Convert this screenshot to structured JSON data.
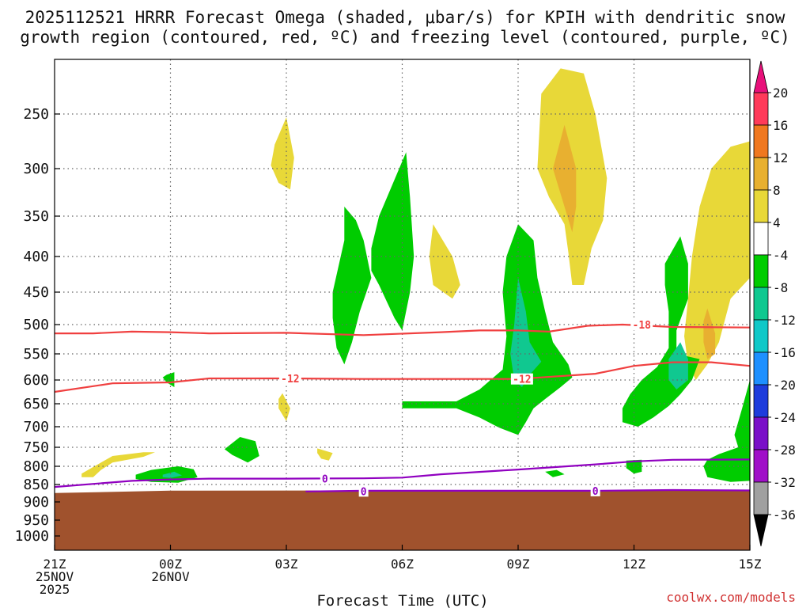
{
  "title_line1": "2025112521 HRRR Forecast Omega (shaded, μbar/s) for KPIH with dendritic snow",
  "title_line2": "growth region (contoured, red, ºC) and freezing level (contoured, purple, ºC)",
  "watermark": "coolwx.com/models",
  "chart_data": {
    "type": "time-height cross section",
    "xlabel": "Forecast Time (UTC)",
    "ylabel": "",
    "x_unit": "hours since 2025-11-25 21Z",
    "x_range": [
      0,
      18
    ],
    "y_unit": "hPa",
    "y_range": [
      1000,
      200
    ],
    "y_ticks": [
      250,
      300,
      350,
      400,
      450,
      500,
      550,
      600,
      650,
      700,
      750,
      800,
      850,
      900,
      950,
      1000
    ],
    "x_ticks": [
      {
        "x": 0,
        "lines": [
          "21Z",
          "25NOV",
          "2025"
        ]
      },
      {
        "x": 3,
        "lines": [
          "00Z",
          "26NOV"
        ]
      },
      {
        "x": 6,
        "lines": [
          "03Z"
        ]
      },
      {
        "x": 9,
        "lines": [
          "06Z"
        ]
      },
      {
        "x": 12,
        "lines": [
          "09Z"
        ]
      },
      {
        "x": 15,
        "lines": [
          "12Z"
        ]
      },
      {
        "x": 18,
        "lines": [
          "15Z"
        ]
      }
    ],
    "colorbar": {
      "labels": [
        "20",
        "16",
        "12",
        "8",
        "4",
        "-4",
        "-8",
        "-12",
        "-16",
        "-20",
        "-24",
        "-28",
        "-32",
        "-36"
      ],
      "colors": [
        "#ff3a5a",
        "#f07820",
        "#e8b030",
        "#e8d838",
        "#ffffff",
        "#00cc00",
        "#10c890",
        "#10c8c8",
        "#1e90ff",
        "#1e3cdc",
        "#7a10c8",
        "#a010c8",
        "#a0a0a0"
      ],
      "top_arrow_color": "#e8107a",
      "bottom_arrow_color": "#000000"
    },
    "terrain": {
      "color": "#a0522d",
      "surface_pressure_hPa": 870
    },
    "contours": [
      {
        "name": "dgz_-18",
        "label": "-18",
        "color": "#f04040",
        "points": [
          [
            0,
            515
          ],
          [
            1,
            515
          ],
          [
            2,
            512
          ],
          [
            3,
            513
          ],
          [
            4,
            515
          ],
          [
            6,
            514
          ],
          [
            8,
            518
          ],
          [
            10,
            513
          ],
          [
            11,
            510
          ],
          [
            12,
            510
          ],
          [
            12.8,
            512
          ],
          [
            13.8,
            502
          ],
          [
            14.7,
            500
          ],
          [
            16,
            504
          ],
          [
            18,
            505
          ]
        ]
      },
      {
        "name": "dgz_-12",
        "label": "-12",
        "color": "#f04040",
        "points": [
          [
            0,
            625
          ],
          [
            1.5,
            607
          ],
          [
            3,
            605
          ],
          [
            4,
            597
          ],
          [
            6,
            597
          ],
          [
            8,
            598
          ],
          [
            10,
            598
          ],
          [
            12,
            598
          ],
          [
            14,
            588
          ],
          [
            15,
            573
          ],
          [
            16,
            566
          ],
          [
            17,
            566
          ],
          [
            18,
            573
          ]
        ]
      },
      {
        "name": "freezing_level_0",
        "label": "0",
        "color": "#9000c0",
        "points": [
          [
            0,
            857
          ],
          [
            2,
            840
          ],
          [
            3,
            836
          ],
          [
            4,
            834
          ],
          [
            6,
            834
          ],
          [
            8,
            833
          ],
          [
            9,
            831
          ],
          [
            10,
            822
          ],
          [
            12,
            809
          ],
          [
            14,
            795
          ],
          [
            15,
            787
          ],
          [
            16,
            783
          ],
          [
            18,
            782
          ]
        ]
      },
      {
        "name": "freezing_level_0_low",
        "label": "0",
        "color": "#9000c0",
        "points": [
          [
            6.5,
            870
          ],
          [
            8,
            868
          ],
          [
            10,
            868
          ],
          [
            12,
            868
          ],
          [
            14,
            868
          ],
          [
            16,
            866
          ],
          [
            18,
            867
          ]
        ]
      }
    ],
    "contour_labels": [
      {
        "text": "-18",
        "x": 15.2,
        "p": 500,
        "color": "#f04040"
      },
      {
        "text": "-12",
        "x": 6.1,
        "p": 597,
        "color": "#f04040"
      },
      {
        "text": "-12",
        "x": 12.1,
        "p": 598,
        "color": "#f04040"
      },
      {
        "text": "0",
        "x": 7.0,
        "p": 834,
        "color": "#9000c0"
      },
      {
        "text": "0",
        "x": 8.0,
        "p": 869,
        "color": "#9000c0"
      },
      {
        "text": "0",
        "x": 14.0,
        "p": 868,
        "color": "#9000c0"
      }
    ],
    "regions": [
      {
        "name": "yellow-03z-upper",
        "value": 4,
        "color": "#e8d838",
        "points": [
          [
            6,
            253
          ],
          [
            6.2,
            290
          ],
          [
            6.1,
            322
          ],
          [
            5.8,
            315
          ],
          [
            5.6,
            297
          ],
          [
            5.7,
            278
          ]
        ]
      },
      {
        "name": "yellow-03z-mid",
        "value": 4,
        "color": "#e8d838",
        "points": [
          [
            5.9,
            628
          ],
          [
            6.1,
            660
          ],
          [
            6.0,
            688
          ],
          [
            5.8,
            660
          ],
          [
            5.8,
            640
          ]
        ]
      },
      {
        "name": "yellow-03z-small",
        "value": 4,
        "color": "#e8d838",
        "points": [
          [
            6.8,
            753
          ],
          [
            7.2,
            765
          ],
          [
            7.1,
            785
          ],
          [
            6.9,
            780
          ],
          [
            6.8,
            765
          ]
        ]
      },
      {
        "name": "yellow-early-low",
        "value": 4,
        "color": "#e8d838",
        "points": [
          [
            0.7,
            820
          ],
          [
            1.5,
            773
          ],
          [
            2.3,
            763
          ],
          [
            2.6,
            763
          ],
          [
            2.3,
            775
          ],
          [
            1.5,
            790
          ],
          [
            1.2,
            810
          ],
          [
            1.0,
            830
          ],
          [
            0.7,
            830
          ]
        ]
      },
      {
        "name": "yellow-0630",
        "value": 4,
        "color": "#e8d838",
        "points": [
          [
            9.8,
            360
          ],
          [
            10.3,
            400
          ],
          [
            10.5,
            440
          ],
          [
            10.3,
            460
          ],
          [
            9.8,
            440
          ],
          [
            9.7,
            400
          ]
        ]
      },
      {
        "name": "yellow-11z",
        "value": 4,
        "color": "#e8d838",
        "points": [
          [
            12.5,
            300
          ],
          [
            12.6,
            230
          ],
          [
            13.1,
            205
          ],
          [
            13.7,
            210
          ],
          [
            14,
            250
          ],
          [
            14.3,
            310
          ],
          [
            14.2,
            355
          ],
          [
            13.9,
            390
          ],
          [
            13.7,
            440
          ],
          [
            13.4,
            440
          ],
          [
            13.3,
            395
          ],
          [
            13.2,
            360
          ],
          [
            12.8,
            330
          ]
        ]
      },
      {
        "name": "gold-11z",
        "value": 8,
        "color": "#e8b030",
        "points": [
          [
            13.2,
            260
          ],
          [
            13.5,
            300
          ],
          [
            13.5,
            340
          ],
          [
            13.4,
            370
          ],
          [
            13.2,
            340
          ],
          [
            12.9,
            300
          ]
        ]
      },
      {
        "name": "yellow-1430",
        "value": 4,
        "color": "#e8d838",
        "points": [
          [
            16.7,
            340
          ],
          [
            17,
            300
          ],
          [
            17.5,
            280
          ],
          [
            18,
            275
          ],
          [
            18,
            430
          ],
          [
            17.5,
            460
          ],
          [
            17.2,
            530
          ],
          [
            16.9,
            570
          ],
          [
            16.6,
            600
          ],
          [
            16.4,
            570
          ],
          [
            16.3,
            520
          ],
          [
            16.4,
            460
          ],
          [
            16.5,
            400
          ]
        ]
      },
      {
        "name": "gold-1430",
        "value": 8,
        "color": "#e8b030",
        "points": [
          [
            16.9,
            475
          ],
          [
            17.1,
            515
          ],
          [
            17.1,
            550
          ],
          [
            16.9,
            560
          ],
          [
            16.8,
            530
          ],
          [
            16.8,
            495
          ]
        ]
      },
      {
        "name": "green-00z-tiny",
        "value": -4,
        "color": "#00cc00",
        "points": [
          [
            2.9,
            590
          ],
          [
            3.1,
            585
          ],
          [
            3.1,
            615
          ],
          [
            2.9,
            605
          ],
          [
            2.8,
            595
          ]
        ]
      },
      {
        "name": "green-early-low",
        "value": -4,
        "color": "#00cc00",
        "points": [
          [
            2.1,
            823
          ],
          [
            2.5,
            810
          ],
          [
            3.2,
            800
          ],
          [
            3.6,
            808
          ],
          [
            3.7,
            830
          ],
          [
            3.2,
            845
          ],
          [
            2.5,
            843
          ],
          [
            2.1,
            835
          ]
        ]
      },
      {
        "name": "cyan-early-low",
        "value": -8,
        "color": "#10c890",
        "points": [
          [
            2.8,
            823
          ],
          [
            3.1,
            815
          ],
          [
            3.3,
            825
          ],
          [
            3.0,
            832
          ],
          [
            2.8,
            830
          ]
        ]
      },
      {
        "name": "green-0115",
        "value": -4,
        "color": "#00cc00",
        "points": [
          [
            4.4,
            755
          ],
          [
            4.8,
            725
          ],
          [
            5.2,
            735
          ],
          [
            5.3,
            773
          ],
          [
            5.0,
            790
          ],
          [
            4.6,
            770
          ]
        ]
      },
      {
        "name": "green-0430",
        "value": -4,
        "color": "#00cc00",
        "points": [
          [
            7.2,
            450
          ],
          [
            7.5,
            380
          ],
          [
            7.5,
            340
          ],
          [
            7.8,
            355
          ],
          [
            8.0,
            380
          ],
          [
            8.2,
            430
          ],
          [
            7.9,
            480
          ],
          [
            7.7,
            530
          ],
          [
            7.5,
            570
          ],
          [
            7.3,
            540
          ],
          [
            7.2,
            490
          ]
        ]
      },
      {
        "name": "green-0545",
        "value": -4,
        "color": "#00cc00",
        "points": [
          [
            8.2,
            390
          ],
          [
            8.4,
            350
          ],
          [
            9.1,
            285
          ],
          [
            9.2,
            330
          ],
          [
            9.3,
            400
          ],
          [
            9.2,
            450
          ],
          [
            9.0,
            510
          ],
          [
            8.8,
            490
          ],
          [
            8.4,
            440
          ],
          [
            8.2,
            420
          ]
        ]
      },
      {
        "name": "green-09z-main",
        "value": -4,
        "color": "#00cc00",
        "points": [
          [
            12,
            360
          ],
          [
            12.4,
            380
          ],
          [
            12.5,
            430
          ],
          [
            12.7,
            480
          ],
          [
            12.9,
            530
          ],
          [
            13.3,
            570
          ],
          [
            13.4,
            595
          ],
          [
            13.1,
            615
          ],
          [
            12.7,
            640
          ],
          [
            12.4,
            660
          ],
          [
            12.2,
            690
          ],
          [
            12,
            720
          ],
          [
            11.5,
            702
          ],
          [
            11,
            680
          ],
          [
            10.4,
            660
          ],
          [
            9,
            660
          ],
          [
            9,
            645
          ],
          [
            10.4,
            645
          ],
          [
            11,
            620
          ],
          [
            11.6,
            580
          ],
          [
            11.7,
            520
          ],
          [
            11.6,
            450
          ],
          [
            11.7,
            400
          ]
        ]
      },
      {
        "name": "cyan-09z",
        "value": -8,
        "color": "#10c890",
        "points": [
          [
            12,
            430
          ],
          [
            12.2,
            480
          ],
          [
            12.3,
            530
          ],
          [
            12.6,
            565
          ],
          [
            12.3,
            590
          ],
          [
            12.1,
            615
          ],
          [
            11.9,
            600
          ],
          [
            11.8,
            550
          ],
          [
            11.9,
            500
          ]
        ]
      },
      {
        "name": "green-12z-right",
        "value": -4,
        "color": "#00cc00",
        "points": [
          [
            16.2,
            375
          ],
          [
            16.4,
            410
          ],
          [
            16.4,
            460
          ],
          [
            16.1,
            510
          ],
          [
            16.1,
            550
          ],
          [
            16.7,
            560
          ],
          [
            16.5,
            600
          ],
          [
            16.2,
            630
          ],
          [
            15.9,
            655
          ],
          [
            15.5,
            680
          ],
          [
            15.1,
            700
          ],
          [
            14.7,
            690
          ],
          [
            14.7,
            660
          ],
          [
            14.9,
            630
          ],
          [
            15.2,
            600
          ],
          [
            15.6,
            575
          ],
          [
            15.9,
            540
          ],
          [
            15.9,
            480
          ],
          [
            15.8,
            440
          ],
          [
            15.8,
            410
          ]
        ]
      },
      {
        "name": "cyan-12z-right",
        "value": -8,
        "color": "#10c890",
        "points": [
          [
            16.2,
            530
          ],
          [
            16.4,
            560
          ],
          [
            16.4,
            600
          ],
          [
            16.1,
            620
          ],
          [
            15.9,
            600
          ],
          [
            15.9,
            560
          ]
        ]
      },
      {
        "name": "green-12z-small",
        "value": -4,
        "color": "#00cc00",
        "points": [
          [
            14.8,
            785
          ],
          [
            15.2,
            783
          ],
          [
            15.2,
            815
          ],
          [
            15.0,
            820
          ],
          [
            14.8,
            805
          ]
        ]
      },
      {
        "name": "green-1000z-tiny",
        "value": -4,
        "color": "#00cc00",
        "points": [
          [
            12.7,
            815
          ],
          [
            13.0,
            810
          ],
          [
            13.2,
            822
          ],
          [
            12.9,
            830
          ]
        ]
      },
      {
        "name": "green-1430-low",
        "value": -4,
        "color": "#00cc00",
        "points": [
          [
            16.9,
            783
          ],
          [
            17.2,
            768
          ],
          [
            17.7,
            750
          ],
          [
            17.6,
            720
          ],
          [
            17.8,
            660
          ],
          [
            18,
            600
          ],
          [
            18,
            840
          ],
          [
            17.5,
            843
          ],
          [
            16.9,
            830
          ],
          [
            16.8,
            800
          ]
        ]
      }
    ]
  }
}
